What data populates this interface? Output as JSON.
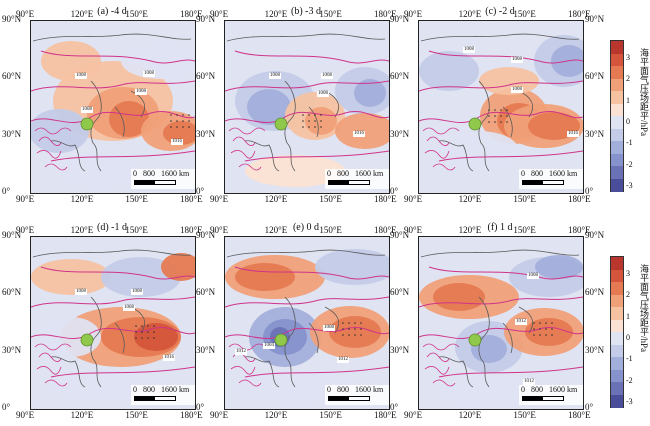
{
  "panels": [
    {
      "title": "(a) -4 d",
      "scale": {
        "zero": "0",
        "mid": "800",
        "end": "1600 km"
      },
      "isobars": [
        "1008",
        "1008",
        "1008",
        "1008",
        "1016"
      ]
    },
    {
      "title": "(b) -3 d",
      "scale": {
        "zero": "0",
        "mid": "800",
        "end": "1600 km"
      },
      "isobars": [
        "1008",
        "1008",
        "1008",
        "1016"
      ]
    },
    {
      "title": "(c) -2 d",
      "scale": {
        "zero": "0",
        "mid": "800",
        "end": "1600 km"
      },
      "isobars": [
        "1008",
        "1008",
        "1008",
        "1016"
      ]
    },
    {
      "title": "(d) -1 d",
      "scale": {
        "zero": "0",
        "mid": "800",
        "end": "1600 km"
      },
      "isobars": [
        "1008",
        "1008",
        "1008",
        "1016"
      ]
    },
    {
      "title": "(e) 0 d",
      "scale": {
        "zero": "0",
        "mid": "800",
        "end": "1600 km"
      },
      "isobars": [
        "1012",
        "1004",
        "1008",
        "1012"
      ]
    },
    {
      "title": "(f) 1 d",
      "scale": {
        "zero": "0",
        "mid": "800",
        "end": "1600 km"
      },
      "isobars": [
        "1008",
        "1012",
        "1012"
      ]
    }
  ],
  "axes": {
    "lon_ticks": [
      "90°E",
      "120°E",
      "150°E",
      "180°E"
    ],
    "lat_ticks": [
      "90°N",
      "60°N",
      "30°N",
      "0°"
    ]
  },
  "colorbar": {
    "label": "海平面气压场距平/hPa",
    "ticks": [
      "3",
      "2",
      "1",
      "0",
      "-1",
      "-2",
      "-3"
    ],
    "colors": {
      "p3": "#b8362e",
      "p25": "#d4553b",
      "p2": "#e57a52",
      "p15": "#f0a078",
      "p1": "#f6c2a2",
      "p05": "#fbe1d3",
      "n05": "#dfe3f2",
      "n1": "#c3cbe8",
      "n15": "#a3afdb",
      "n2": "#8592cb",
      "n25": "#6a72b5",
      "n3": "#4a4e9a"
    }
  },
  "colors": {
    "isobar": "#d0338a",
    "coast": "#5a5a5a",
    "marker": "#8fc84b"
  }
}
